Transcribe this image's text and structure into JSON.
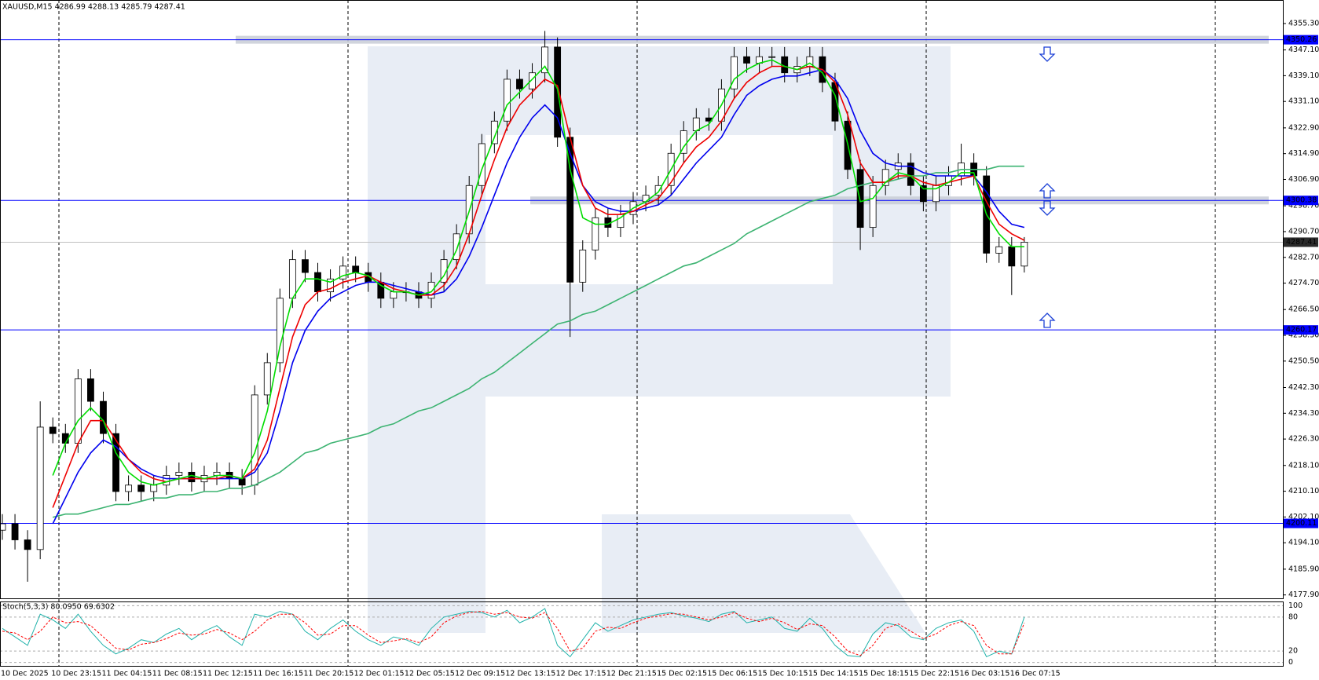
{
  "header": "XAUUSD,M15  4286.99 4288.13 4285.79 4287.41",
  "chart_data": {
    "type": "candlestick",
    "categories": [
      "10 Dec 2025",
      null,
      null,
      null,
      "10 Dec 23:15",
      null,
      null,
      null,
      "11 Dec 04:15",
      null,
      null,
      null,
      "11 Dec 08:15",
      null,
      null,
      null,
      "11 Dec 12:15",
      null,
      null,
      null,
      "11 Dec 16:15",
      null,
      null,
      null,
      "11 Dec 20:15",
      null,
      null,
      null,
      "12 Dec 01:15",
      null,
      null,
      null,
      "12 Dec 05:15",
      null,
      null,
      null,
      "12 Dec 09:15",
      null,
      null,
      null,
      "12 Dec 13:15",
      null,
      null,
      null,
      "12 Dec 17:15",
      null,
      null,
      null,
      "12 Dec 21:15",
      null,
      null,
      null,
      "15 Dec 02:15",
      null,
      null,
      null,
      "15 Dec 06:15",
      null,
      null,
      null,
      "15 Dec 10:15",
      null,
      null,
      null,
      "15 Dec 14:15",
      null,
      null,
      null,
      "15 Dec 18:15",
      null,
      null,
      null,
      "15 Dec 22:15",
      null,
      null,
      null,
      "16 Dec 03:15",
      null,
      null,
      null,
      "16 Dec 07:15",
      null
    ],
    "open": [
      4198,
      4200,
      4195,
      4192,
      4230,
      4228,
      4225,
      4245,
      4238,
      4228,
      4210,
      4212,
      4210,
      4212,
      4215,
      4216,
      4213,
      4215,
      4216,
      4214,
      4212,
      4240,
      4250,
      4270,
      4282,
      4278,
      4272,
      4276,
      4280,
      4278,
      4275,
      4270,
      4272,
      4272,
      4270,
      4275,
      4282,
      4290,
      4305,
      4318,
      4325,
      4338,
      4335,
      4340,
      4348,
      4320,
      4275,
      4285,
      4295,
      4292,
      4296,
      4300,
      4302,
      4305,
      4315,
      4322,
      4326,
      4325,
      4335,
      4345,
      4343,
      4345,
      4345,
      4340,
      4342,
      4345,
      4337,
      4325,
      4310,
      4292,
      4305,
      4310,
      4312,
      4305,
      4300,
      4305,
      4308,
      4312,
      4308,
      4284,
      4286,
      4280
    ],
    "high": [
      4203,
      4203,
      4198,
      4238,
      4233,
      4231,
      4248,
      4248,
      4241,
      4231,
      4215,
      4215,
      4215,
      4218,
      4219,
      4219,
      4218,
      4219,
      4219,
      4217,
      4243,
      4253,
      4273,
      4285,
      4285,
      4281,
      4279,
      4283,
      4283,
      4281,
      4278,
      4275,
      4275,
      4275,
      4278,
      4285,
      4293,
      4308,
      4321,
      4328,
      4341,
      4341,
      4343,
      4353,
      4351,
      4323,
      4288,
      4298,
      4298,
      4299,
      4303,
      4305,
      4308,
      4318,
      4325,
      4329,
      4329,
      4338,
      4348,
      4348,
      4348,
      4348,
      4348,
      4345,
      4348,
      4348,
      4340,
      4328,
      4313,
      4308,
      4313,
      4315,
      4315,
      4308,
      4308,
      4311,
      4318,
      4315,
      4311,
      4289,
      4289,
      4289
    ],
    "low": [
      4195,
      4192,
      4182,
      4189,
      4225,
      4222,
      4222,
      4235,
      4225,
      4207,
      4207,
      4207,
      4207,
      4209,
      4212,
      4210,
      4210,
      4212,
      4211,
      4209,
      4209,
      4237,
      4247,
      4267,
      4275,
      4269,
      4269,
      4273,
      4275,
      4272,
      4267,
      4267,
      4269,
      4267,
      4267,
      4272,
      4279,
      4287,
      4302,
      4315,
      4322,
      4332,
      4332,
      4337,
      4317,
      4258,
      4272,
      4282,
      4289,
      4289,
      4293,
      4297,
      4299,
      4302,
      4312,
      4319,
      4322,
      4322,
      4332,
      4340,
      4340,
      4342,
      4337,
      4337,
      4339,
      4334,
      4322,
      4307,
      4285,
      4289,
      4302,
      4307,
      4302,
      4297,
      4297,
      4302,
      4305,
      4305,
      4281,
      4281,
      4271,
      4278
    ],
    "close": [
      4200,
      4195,
      4192,
      4230,
      4228,
      4225,
      4245,
      4238,
      4228,
      4210,
      4212,
      4210,
      4212,
      4215,
      4216,
      4213,
      4215,
      4216,
      4214,
      4212,
      4240,
      4250,
      4270,
      4282,
      4278,
      4272,
      4276,
      4280,
      4278,
      4275,
      4270,
      4272,
      4272,
      4270,
      4275,
      4282,
      4290,
      4305,
      4318,
      4325,
      4338,
      4335,
      4340,
      4348,
      4320,
      4275,
      4285,
      4295,
      4292,
      4296,
      4300,
      4302,
      4305,
      4315,
      4322,
      4326,
      4325,
      4335,
      4345,
      4343,
      4345,
      4345,
      4340,
      4342,
      4345,
      4337,
      4325,
      4310,
      4292,
      4305,
      4310,
      4312,
      4305,
      4300,
      4305,
      4308,
      4312,
      4308,
      4284,
      4286,
      4280,
      4287.41
    ],
    "series": [
      {
        "color": "#3cb371",
        "values": [
          null,
          null,
          null,
          null,
          4202,
          4203,
          4203,
          4204,
          4205,
          4206,
          4206,
          4207,
          4208,
          4208,
          4209,
          4209,
          4210,
          4210,
          4211,
          4211,
          4212,
          4214,
          4216,
          4219,
          4222,
          4223,
          4225,
          4226,
          4227,
          4228,
          4230,
          4231,
          4233,
          4235,
          4236,
          4238,
          4240,
          4242,
          4245,
          4247,
          4250,
          4253,
          4256,
          4259,
          4262,
          4263,
          4265,
          4266,
          4268,
          4270,
          4272,
          4274,
          4276,
          4278,
          4280,
          4281,
          4283,
          4285,
          4287,
          4290,
          4292,
          4294,
          4296,
          4298,
          4300,
          4301,
          4302,
          4304,
          4305,
          4306,
          4306,
          4307,
          4308,
          4308,
          4309,
          4309,
          4310,
          4310,
          4310,
          4311,
          4311,
          4311
        ]
      },
      {
        "color": "#0000ee",
        "values": [
          null,
          null,
          null,
          null,
          4200,
          4208,
          4216,
          4222,
          4226,
          4224,
          4220,
          4217,
          4215,
          4214,
          4214,
          4214,
          4214,
          4214,
          4214,
          4214,
          4216,
          4222,
          4235,
          4250,
          4260,
          4266,
          4270,
          4272,
          4274,
          4275,
          4275,
          4274,
          4273,
          4272,
          4271,
          4272,
          4276,
          4283,
          4292,
          4302,
          4312,
          4320,
          4326,
          4330,
          4326,
          4315,
          4305,
          4300,
          4298,
          4297,
          4297,
          4298,
          4299,
          4302,
          4307,
          4312,
          4316,
          4320,
          4327,
          4333,
          4336,
          4338,
          4339,
          4339,
          4340,
          4341,
          4338,
          4332,
          4322,
          4315,
          4312,
          4311,
          4311,
          4309,
          4308,
          4308,
          4308,
          4308,
          4303,
          4297,
          4293,
          4292
        ]
      },
      {
        "color": "#ee0000",
        "values": [
          null,
          null,
          null,
          null,
          4205,
          4215,
          4225,
          4232,
          4232,
          4226,
          4220,
          4216,
          4214,
          4213,
          4214,
          4214,
          4214,
          4214,
          4215,
          4214,
          4217,
          4226,
          4242,
          4258,
          4268,
          4272,
          4273,
          4275,
          4276,
          4277,
          4275,
          4273,
          4272,
          4271,
          4271,
          4274,
          4280,
          4290,
          4302,
          4313,
          4323,
          4330,
          4334,
          4338,
          4336,
          4320,
          4305,
          4298,
          4296,
          4296,
          4297,
          4299,
          4301,
          4306,
          4312,
          4317,
          4320,
          4325,
          4332,
          4337,
          4340,
          4342,
          4342,
          4341,
          4342,
          4341,
          4337,
          4327,
          4312,
          4306,
          4306,
          4308,
          4308,
          4306,
          4305,
          4306,
          4307,
          4308,
          4300,
          4293,
          4290,
          4288
        ]
      },
      {
        "color": "#00dd00",
        "values": [
          null,
          null,
          null,
          null,
          4215,
          4225,
          4232,
          4236,
          4232,
          4222,
          4216,
          4213,
          4212,
          4213,
          4214,
          4215,
          4214,
          4215,
          4215,
          4214,
          4222,
          4235,
          4255,
          4270,
          4276,
          4276,
          4275,
          4277,
          4278,
          4277,
          4274,
          4272,
          4272,
          4271,
          4272,
          4277,
          4285,
          4297,
          4310,
          4320,
          4330,
          4334,
          4338,
          4342,
          4335,
          4310,
          4295,
          4293,
          4293,
          4295,
          4298,
          4300,
          4303,
          4310,
          4317,
          4322,
          4324,
          4330,
          4338,
          4341,
          4343,
          4344,
          4342,
          4341,
          4343,
          4340,
          4333,
          4318,
          4300,
          4301,
          4306,
          4309,
          4308,
          4304,
          4304,
          4306,
          4309,
          4309,
          4296,
          4290,
          4286,
          4286
        ]
      }
    ],
    "ylim": [
      4176.6,
      4362.6
    ],
    "yticks": [
      {
        "value": 4355.3,
        "label": "4355.30"
      },
      {
        "value": 4347.1,
        "label": "4347.10"
      },
      {
        "value": 4339.1,
        "label": "4339.10"
      },
      {
        "value": 4331.1,
        "label": "4331.10"
      },
      {
        "value": 4322.9,
        "label": "4322.90"
      },
      {
        "value": 4314.9,
        "label": "4314.90"
      },
      {
        "value": 4306.9,
        "label": "4306.90"
      },
      {
        "value": 4298.7,
        "label": "4298.70"
      },
      {
        "value": 4290.7,
        "label": "4290.70"
      },
      {
        "value": 4282.7,
        "label": "4282.70"
      },
      {
        "value": 4274.7,
        "label": "4274.70"
      },
      {
        "value": 4266.5,
        "label": "4266.50"
      },
      {
        "value": 4258.5,
        "label": "4258.50"
      },
      {
        "value": 4250.5,
        "label": "4250.50"
      },
      {
        "value": 4242.3,
        "label": "4242.30"
      },
      {
        "value": 4234.3,
        "label": "4234.30"
      },
      {
        "value": 4226.3,
        "label": "4226.30"
      },
      {
        "value": 4218.1,
        "label": "4218.10"
      },
      {
        "value": 4210.1,
        "label": "4210.10"
      },
      {
        "value": 4202.1,
        "label": "4202.10"
      },
      {
        "value": 4194.1,
        "label": "4194.10"
      },
      {
        "value": 4185.9,
        "label": "4185.90"
      },
      {
        "value": 4177.9,
        "label": "4177.90"
      }
    ],
    "levels": [
      4350.26,
      4300.38,
      4260.17,
      4200.11
    ],
    "level_color": "#0000ff",
    "indicator": {
      "title": "Stoch(5,3,3) 80.0950 69.6302",
      "ylim": [
        -7.5,
        107.5
      ],
      "yticks": [
        100,
        80,
        20,
        0
      ],
      "series": [
        {
          "color": "#20b2aa",
          "values": [
            60,
            45,
            30,
            85,
            75,
            60,
            85,
            55,
            30,
            15,
            25,
            40,
            35,
            50,
            60,
            40,
            55,
            65,
            45,
            30,
            85,
            80,
            90,
            85,
            55,
            40,
            60,
            75,
            55,
            40,
            30,
            45,
            40,
            30,
            60,
            80,
            85,
            90,
            88,
            80,
            92,
            70,
            80,
            95,
            30,
            10,
            40,
            70,
            55,
            65,
            75,
            80,
            85,
            88,
            82,
            78,
            72,
            85,
            90,
            70,
            75,
            80,
            60,
            55,
            78,
            60,
            30,
            12,
            10,
            50,
            70,
            65,
            45,
            40,
            60,
            70,
            75,
            55,
            10,
            20,
            15,
            80.095
          ]
        },
        {
          "color": "#ff0000",
          "dashed": true,
          "values": [
            55,
            52,
            40,
            55,
            80,
            70,
            72,
            65,
            45,
            25,
            22,
            32,
            35,
            42,
            52,
            48,
            50,
            58,
            52,
            40,
            55,
            75,
            85,
            85,
            70,
            48,
            50,
            65,
            65,
            48,
            35,
            38,
            42,
            35,
            45,
            70,
            82,
            88,
            90,
            85,
            88,
            80,
            78,
            88,
            60,
            20,
            25,
            55,
            62,
            60,
            70,
            78,
            82,
            86,
            85,
            80,
            75,
            80,
            88,
            78,
            72,
            78,
            70,
            58,
            68,
            65,
            45,
            20,
            12,
            30,
            60,
            68,
            55,
            42,
            50,
            65,
            72,
            65,
            30,
            15,
            15,
            69.6302
          ]
        }
      ]
    }
  }
}
